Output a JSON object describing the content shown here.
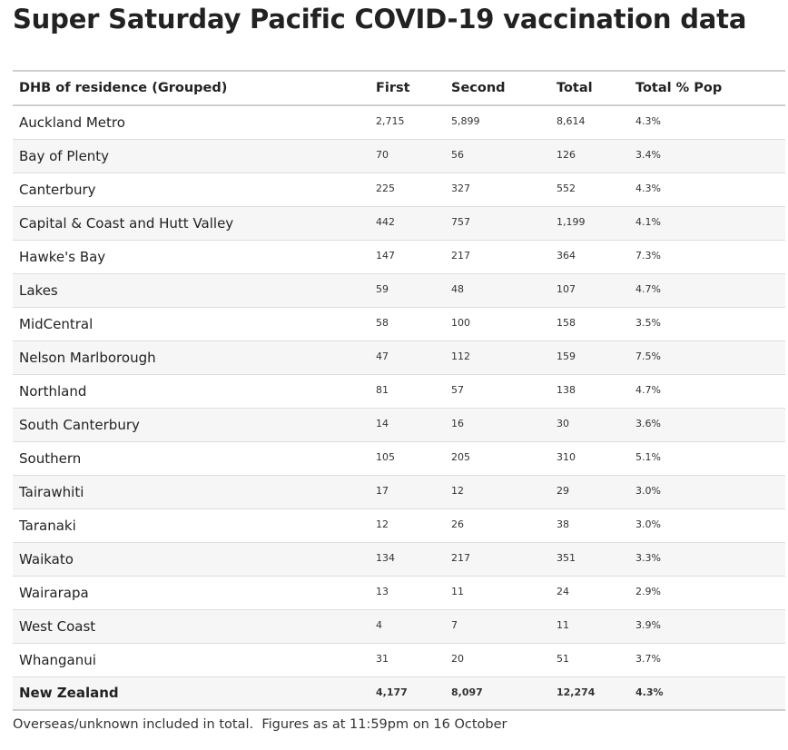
{
  "title": "Super Saturday Pacific COVID-19 vaccination data",
  "table": {
    "headers": [
      "DHB of residence (Grouped)",
      "First",
      "Second",
      "Total",
      "Total % Pop"
    ],
    "rows": [
      {
        "name": "Auckland Metro",
        "first": "2,715",
        "second": "5,899",
        "total": "8,614",
        "pct": "4.3%"
      },
      {
        "name": "Bay of Plenty",
        "first": "70",
        "second": "56",
        "total": "126",
        "pct": "3.4%"
      },
      {
        "name": "Canterbury",
        "first": "225",
        "second": "327",
        "total": "552",
        "pct": "4.3%"
      },
      {
        "name": "Capital & Coast and Hutt Valley",
        "first": "442",
        "second": "757",
        "total": "1,199",
        "pct": "4.1%"
      },
      {
        "name": "Hawke's Bay",
        "first": "147",
        "second": "217",
        "total": "364",
        "pct": "7.3%"
      },
      {
        "name": "Lakes",
        "first": "59",
        "second": "48",
        "total": "107",
        "pct": "4.7%"
      },
      {
        "name": "MidCentral",
        "first": "58",
        "second": "100",
        "total": "158",
        "pct": "3.5%"
      },
      {
        "name": "Nelson Marlborough",
        "first": "47",
        "second": "112",
        "total": "159",
        "pct": "7.5%"
      },
      {
        "name": "Northland",
        "first": "81",
        "second": "57",
        "total": "138",
        "pct": "4.7%"
      },
      {
        "name": "South Canterbury",
        "first": "14",
        "second": "16",
        "total": "30",
        "pct": "3.6%"
      },
      {
        "name": "Southern",
        "first": "105",
        "second": "205",
        "total": "310",
        "pct": "5.1%"
      },
      {
        "name": "Tairawhiti",
        "first": "17",
        "second": "12",
        "total": "29",
        "pct": "3.0%"
      },
      {
        "name": "Taranaki",
        "first": "12",
        "second": "26",
        "total": "38",
        "pct": "3.0%"
      },
      {
        "name": "Waikato",
        "first": "134",
        "second": "217",
        "total": "351",
        "pct": "3.3%"
      },
      {
        "name": "Wairarapa",
        "first": "13",
        "second": "11",
        "total": "24",
        "pct": "2.9%"
      },
      {
        "name": "West Coast",
        "first": "4",
        "second": "7",
        "total": "11",
        "pct": "3.9%"
      },
      {
        "name": "Whanganui",
        "first": "31",
        "second": "20",
        "total": "51",
        "pct": "3.7%"
      }
    ],
    "total_row": {
      "name": "New Zealand",
      "first": "4,177",
      "second": "8,097",
      "total": "12,274",
      "pct": "4.3%"
    }
  },
  "footnote": "Overseas/unknown included in total.  Figures as at 11:59pm on 16 October"
}
